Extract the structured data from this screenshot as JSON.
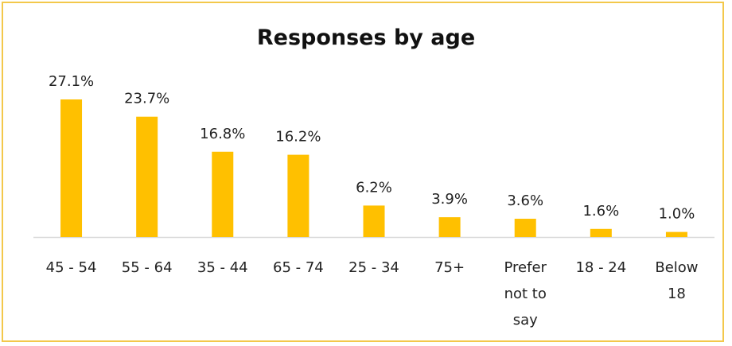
{
  "chart_data": {
    "type": "bar",
    "title": "Responses by age",
    "categories": [
      "45 - 54",
      "55 - 64",
      "35 - 44",
      "65 - 74",
      "25 - 34",
      "75+",
      "Prefer not to say",
      "18 - 24",
      "Below 18"
    ],
    "values": [
      27.1,
      23.7,
      16.8,
      16.2,
      6.2,
      3.9,
      3.6,
      1.6,
      1.0
    ],
    "value_labels": [
      "27.1%",
      "23.7%",
      "16.8%",
      "16.2%",
      "6.2%",
      "3.9%",
      "3.6%",
      "1.6%",
      "1.0%"
    ],
    "category_label_lines": [
      [
        "45 - 54"
      ],
      [
        "55 - 64"
      ],
      [
        "35 - 44"
      ],
      [
        "65 - 74"
      ],
      [
        "25 - 34"
      ],
      [
        "75+"
      ],
      [
        "Prefer",
        "not to",
        "say"
      ],
      [
        "18 - 24"
      ],
      [
        "Below",
        "18"
      ]
    ],
    "ylim": [
      0,
      27.1
    ],
    "xlabel": "",
    "ylabel": "",
    "grid": false,
    "legend": "none",
    "bar_color": "#FFC000",
    "axis_color": "#D9D9D9",
    "border_color": "#F3C84B"
  }
}
